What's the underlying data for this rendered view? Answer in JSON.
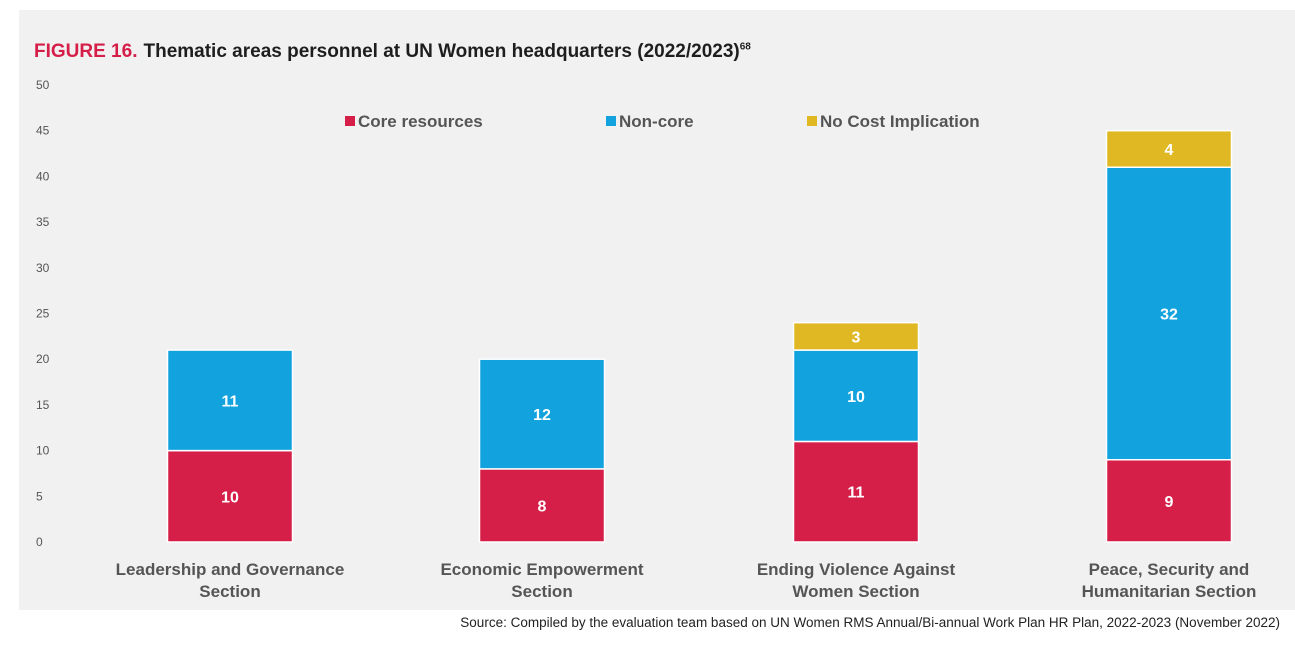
{
  "figure": {
    "label": "FIGURE 16.",
    "title": "Thematic areas personnel at UN Women headquarters (2022/2023)",
    "footnote": "68",
    "source": "Source: Compiled by the evaluation team based on UN Women RMS Annual/Bi-annual Work Plan HR Plan, 2022-2023 (November 2022)"
  },
  "colors": {
    "panel_background": "#f1f1f1",
    "title_accent": "#d51f48",
    "text": "#1e1e1e",
    "axis_text": "#555555"
  },
  "chart_data": {
    "type": "bar",
    "stacked": true,
    "categories": [
      "Leadership and Governance Section",
      "Economic Empowerment Section",
      "Ending Violence Against Women Section",
      "Peace, Security and Humanitarian Section"
    ],
    "category_lines": [
      [
        "Leadership and Governance",
        "Section"
      ],
      [
        "Economic Empowerment",
        "Section"
      ],
      [
        "Ending Violence Against",
        "Women Section"
      ],
      [
        "Peace, Security and",
        "Humanitarian Section"
      ]
    ],
    "series": [
      {
        "name": "Core resources",
        "color": "#d51f48",
        "values": [
          10,
          8,
          11,
          9
        ]
      },
      {
        "name": "Non-core",
        "color": "#12a2dd",
        "values": [
          11,
          12,
          10,
          32
        ]
      },
      {
        "name": "No Cost Implication",
        "color": "#e0b824",
        "values": [
          0,
          0,
          3,
          4
        ]
      }
    ],
    "ylim": [
      0,
      50
    ],
    "yticks": [
      0,
      5,
      10,
      15,
      20,
      25,
      30,
      35,
      40,
      45,
      50
    ],
    "xlabel": "",
    "ylabel": "",
    "grid": false,
    "legend_position": "top"
  }
}
